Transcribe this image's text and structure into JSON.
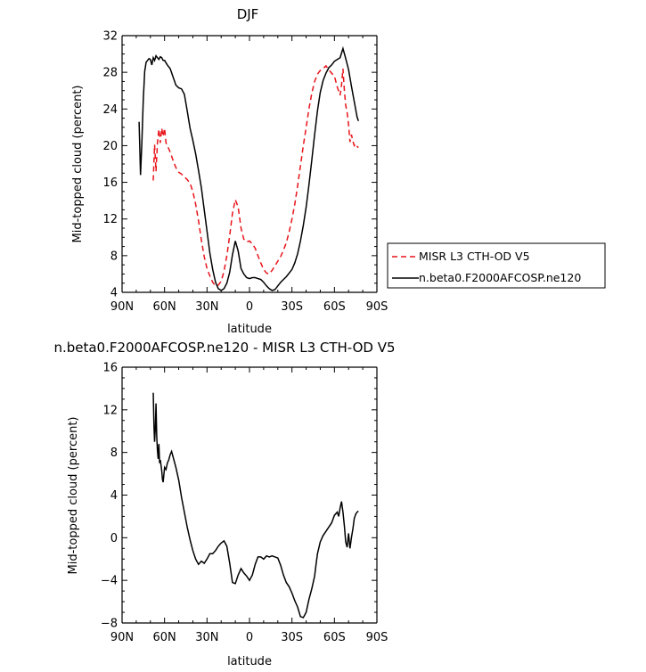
{
  "chart_data": [
    {
      "type": "line",
      "title": "DJF",
      "xlabel": "latitude",
      "ylabel": "Mid-topped cloud (percent)",
      "xlim": [
        90,
        -90
      ],
      "ylim": [
        4,
        32
      ],
      "xticks": [
        90,
        60,
        30,
        0,
        -30,
        -60,
        -90
      ],
      "xtick_labels": [
        "90N",
        "60N",
        "30N",
        "0",
        "30S",
        "60S",
        "90S"
      ],
      "yticks": [
        4,
        8,
        12,
        16,
        20,
        24,
        28,
        32
      ],
      "ytick_labels": [
        "4",
        "8",
        "12",
        "16",
        "20",
        "24",
        "28",
        "32"
      ],
      "legend": "outside-right",
      "series": [
        {
          "name": "MISR L3 CTH-OD V5",
          "color": "#e8141b",
          "dash": "dashed",
          "x": [
            68,
            67,
            66,
            65,
            64,
            63,
            62,
            61,
            60,
            59,
            58,
            56,
            54,
            52,
            50,
            48,
            46,
            44,
            42,
            40,
            38,
            36,
            34,
            32,
            30,
            28,
            26,
            24,
            22,
            20,
            18,
            16,
            14,
            12,
            10,
            8,
            6,
            4,
            2,
            0,
            -2,
            -4,
            -6,
            -8,
            -10,
            -12,
            -14,
            -16,
            -18,
            -20,
            -22,
            -24,
            -26,
            -28,
            -30,
            -32,
            -34,
            -36,
            -38,
            -40,
            -42,
            -44,
            -46,
            -48,
            -50,
            -52,
            -54,
            -56,
            -58,
            -60,
            -62,
            -64,
            -65,
            -66,
            -67,
            -68,
            -69,
            -70,
            -71,
            -72,
            -73,
            -74,
            -75,
            -76,
            -77
          ],
          "y": [
            16.2,
            20.1,
            17.2,
            20.3,
            21.8,
            20.3,
            21.9,
            21.0,
            21.9,
            20.3,
            20.0,
            19.3,
            18.4,
            17.6,
            17.1,
            16.9,
            16.6,
            16.3,
            15.9,
            15.0,
            13.6,
            11.8,
            9.7,
            7.9,
            6.6,
            5.8,
            5.1,
            4.7,
            4.8,
            5.2,
            6.3,
            8.0,
            10.2,
            12.6,
            14.1,
            13.3,
            11.0,
            9.8,
            9.5,
            9.6,
            9.3,
            8.8,
            8.0,
            7.2,
            6.5,
            6.1,
            6.0,
            6.4,
            6.9,
            7.4,
            7.9,
            8.6,
            9.4,
            10.6,
            12.0,
            13.6,
            15.6,
            17.8,
            20.0,
            22.0,
            24.0,
            25.7,
            27.0,
            27.8,
            28.2,
            28.4,
            28.7,
            28.3,
            27.9,
            27.6,
            26.4,
            25.5,
            26.6,
            28.4,
            26.0,
            24.4,
            23.6,
            22.3,
            20.4,
            21.2,
            20.5,
            20.0,
            20.2,
            19.9,
            19.8
          ]
        },
        {
          "name": "n.beta0.F2000AFCOSP.ne120",
          "color": "#000000",
          "dash": "solid",
          "x": [
            78,
            77,
            76,
            75,
            74,
            73,
            72,
            71,
            70,
            69,
            68,
            67,
            66,
            65,
            64,
            63,
            62,
            61,
            60,
            58,
            56,
            54,
            52,
            50,
            48,
            46,
            44,
            42,
            40,
            38,
            36,
            34,
            32,
            30,
            28,
            26,
            24,
            22,
            20,
            18,
            16,
            14,
            12,
            10,
            8,
            6,
            4,
            2,
            0,
            -2,
            -4,
            -6,
            -8,
            -10,
            -12,
            -14,
            -16,
            -18,
            -20,
            -22,
            -24,
            -26,
            -28,
            -30,
            -32,
            -34,
            -36,
            -38,
            -40,
            -42,
            -44,
            -46,
            -48,
            -50,
            -52,
            -54,
            -56,
            -58,
            -60,
            -62,
            -64,
            -66,
            -68,
            -70,
            -72,
            -74,
            -76,
            -77
          ],
          "y": [
            22.6,
            16.8,
            20.3,
            25.0,
            28.1,
            29.1,
            29.3,
            29.5,
            29.4,
            28.8,
            29.6,
            29.3,
            29.8,
            29.6,
            29.4,
            29.7,
            29.6,
            29.3,
            29.3,
            28.8,
            28.4,
            27.5,
            26.6,
            26.3,
            26.2,
            25.6,
            23.8,
            21.9,
            20.6,
            19.1,
            17.3,
            15.4,
            13.0,
            10.7,
            8.3,
            6.5,
            5.1,
            4.4,
            4.2,
            4.4,
            5.0,
            6.2,
            8.1,
            9.6,
            8.5,
            6.6,
            6.0,
            5.6,
            5.5,
            5.6,
            5.6,
            5.5,
            5.4,
            5.1,
            4.7,
            4.4,
            4.2,
            4.3,
            4.7,
            5.1,
            5.4,
            5.7,
            6.1,
            6.5,
            7.2,
            8.2,
            9.6,
            11.3,
            13.3,
            15.7,
            18.4,
            21.2,
            23.8,
            25.8,
            27.1,
            27.9,
            28.5,
            28.8,
            29.2,
            29.4,
            29.6,
            30.6,
            29.5,
            28.3,
            26.5,
            24.8,
            23.1,
            22.7
          ]
        }
      ]
    },
    {
      "type": "line",
      "title": "n.beta0.F2000AFCOSP.ne120 - MISR L3 CTH-OD V5",
      "xlabel": "latitude",
      "ylabel": "Mid-topped cloud (percent)",
      "xlim": [
        90,
        -90
      ],
      "ylim": [
        -8,
        16
      ],
      "xticks": [
        90,
        60,
        30,
        0,
        -30,
        -60,
        -90
      ],
      "xtick_labels": [
        "90N",
        "60N",
        "30N",
        "0",
        "30S",
        "60S",
        "90S"
      ],
      "yticks": [
        -8,
        -4,
        0,
        4,
        8,
        12,
        16
      ],
      "ytick_labels": [
        "−8",
        "−4",
        "0",
        "4",
        "8",
        "12",
        "16"
      ],
      "series": [
        {
          "color": "#000000",
          "dash": "solid",
          "x": [
            68,
            67.5,
            67,
            66.5,
            66,
            65.5,
            65,
            64.5,
            64,
            63.5,
            63,
            62.5,
            62,
            61.5,
            61,
            60,
            59,
            58,
            57,
            56,
            55,
            54,
            53,
            52,
            50,
            48,
            46,
            44,
            42,
            40,
            38,
            36,
            34,
            32,
            30,
            28,
            26,
            24,
            22,
            20,
            18,
            16,
            14,
            12,
            10,
            8,
            6,
            4,
            2,
            0,
            -2,
            -4,
            -6,
            -8,
            -10,
            -12,
            -14,
            -16,
            -18,
            -20,
            -22,
            -24,
            -26,
            -28,
            -30,
            -32,
            -34,
            -36,
            -38,
            -40,
            -42,
            -44,
            -46,
            -47,
            -48,
            -50,
            -52,
            -54,
            -56,
            -58,
            -60,
            -62,
            -63,
            -64,
            -65,
            -66,
            -67,
            -68,
            -69,
            -70,
            -71,
            -72,
            -73,
            -74,
            -75,
            -76,
            -77
          ],
          "y": [
            13.6,
            10.5,
            9.0,
            10.2,
            12.6,
            9.5,
            8.2,
            7.4,
            8.8,
            7.0,
            7.3,
            6.8,
            6.3,
            5.5,
            5.2,
            6.6,
            6.4,
            7.0,
            7.3,
            7.8,
            8.1,
            7.6,
            7.1,
            6.6,
            5.4,
            3.8,
            2.4,
            1.0,
            -0.2,
            -1.2,
            -2.0,
            -2.5,
            -2.2,
            -2.4,
            -2.0,
            -1.5,
            -1.5,
            -1.2,
            -0.8,
            -0.5,
            -0.3,
            -0.8,
            -2.4,
            -4.2,
            -4.3,
            -3.5,
            -2.9,
            -3.3,
            -3.6,
            -4.0,
            -3.5,
            -2.5,
            -1.8,
            -1.8,
            -2.0,
            -1.7,
            -1.8,
            -1.7,
            -1.8,
            -1.9,
            -2.6,
            -3.5,
            -4.2,
            -4.6,
            -5.2,
            -5.9,
            -6.5,
            -7.4,
            -7.5,
            -7.0,
            -5.8,
            -4.8,
            -3.6,
            -2.5,
            -1.5,
            -0.4,
            0.2,
            0.6,
            1.0,
            1.4,
            2.1,
            2.4,
            2.0,
            2.8,
            3.4,
            2.4,
            1.1,
            -0.4,
            -0.9,
            0.4,
            -1.0,
            0.0,
            0.8,
            1.8,
            2.2,
            2.4,
            2.5
          ]
        }
      ]
    }
  ]
}
